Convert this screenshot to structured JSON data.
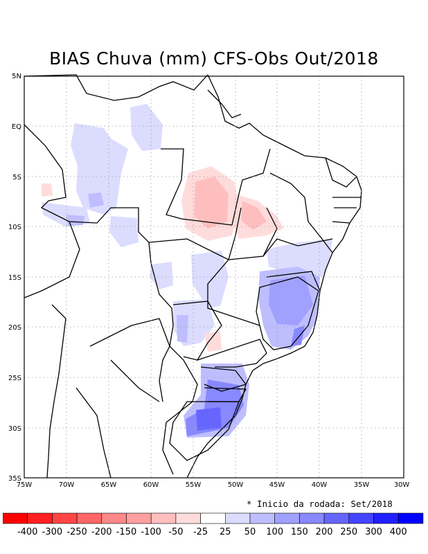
{
  "map": {
    "title": "BIAS Chuva (mm) CFS-Obs Out/2018",
    "lat_labels": [
      "5N",
      "EQ",
      "5S",
      "10S",
      "15S",
      "20S",
      "25S",
      "30S",
      "35S"
    ],
    "lon_labels": [
      "75W",
      "70W",
      "65W",
      "60W",
      "55W",
      "50W",
      "45W",
      "40W",
      "35W",
      "30W"
    ],
    "note": "* Inicio da rodada: Set/2018"
  },
  "colorbar": {
    "colors": [
      "#ff0000",
      "#ff2020",
      "#ff4444",
      "#ff6666",
      "#ff8888",
      "#ffa0a0",
      "#ffbebe",
      "#ffdcdc",
      "#ffffff",
      "#dcdcff",
      "#bebeff",
      "#a0a0ff",
      "#8888ff",
      "#6666ff",
      "#4444ff",
      "#2020ff",
      "#0000ff"
    ],
    "labels": [
      "-400",
      "-300",
      "-250",
      "-200",
      "-150",
      "-100",
      "-50",
      "-25",
      "25",
      "50",
      "100",
      "150",
      "200",
      "250",
      "300",
      "400"
    ]
  }
}
